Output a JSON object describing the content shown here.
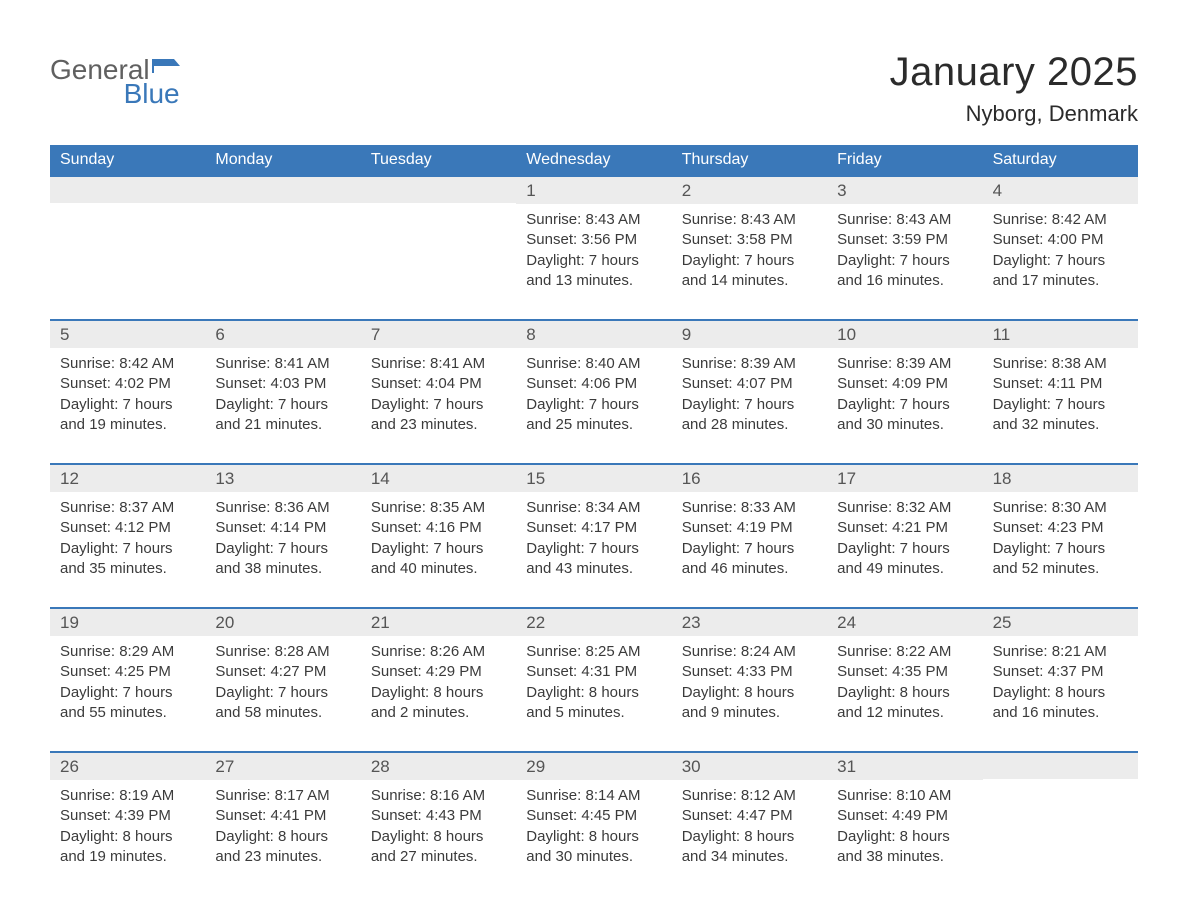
{
  "logo": {
    "text_general": "General",
    "text_blue": "Blue",
    "flag_color": "#3a78b9",
    "general_color": "#606060",
    "blue_color": "#3a78b9"
  },
  "header": {
    "month_title": "January 2025",
    "location": "Nyborg, Denmark"
  },
  "colors": {
    "header_bg": "#3a78b9",
    "header_text": "#ffffff",
    "row_divider": "#3a78b9",
    "daynum_bg": "#ececec",
    "body_text": "#3b3b3b",
    "background": "#ffffff"
  },
  "fonts": {
    "family": "Arial",
    "month_title_size": 40,
    "location_size": 22,
    "dayname_size": 16,
    "daynum_size": 17,
    "detail_size": 15
  },
  "daynames": [
    "Sunday",
    "Monday",
    "Tuesday",
    "Wednesday",
    "Thursday",
    "Friday",
    "Saturday"
  ],
  "weeks": [
    [
      {
        "day": "",
        "sunrise": "",
        "sunset": "",
        "daylight1": "",
        "daylight2": ""
      },
      {
        "day": "",
        "sunrise": "",
        "sunset": "",
        "daylight1": "",
        "daylight2": ""
      },
      {
        "day": "",
        "sunrise": "",
        "sunset": "",
        "daylight1": "",
        "daylight2": ""
      },
      {
        "day": "1",
        "sunrise": "Sunrise: 8:43 AM",
        "sunset": "Sunset: 3:56 PM",
        "daylight1": "Daylight: 7 hours",
        "daylight2": "and 13 minutes."
      },
      {
        "day": "2",
        "sunrise": "Sunrise: 8:43 AM",
        "sunset": "Sunset: 3:58 PM",
        "daylight1": "Daylight: 7 hours",
        "daylight2": "and 14 minutes."
      },
      {
        "day": "3",
        "sunrise": "Sunrise: 8:43 AM",
        "sunset": "Sunset: 3:59 PM",
        "daylight1": "Daylight: 7 hours",
        "daylight2": "and 16 minutes."
      },
      {
        "day": "4",
        "sunrise": "Sunrise: 8:42 AM",
        "sunset": "Sunset: 4:00 PM",
        "daylight1": "Daylight: 7 hours",
        "daylight2": "and 17 minutes."
      }
    ],
    [
      {
        "day": "5",
        "sunrise": "Sunrise: 8:42 AM",
        "sunset": "Sunset: 4:02 PM",
        "daylight1": "Daylight: 7 hours",
        "daylight2": "and 19 minutes."
      },
      {
        "day": "6",
        "sunrise": "Sunrise: 8:41 AM",
        "sunset": "Sunset: 4:03 PM",
        "daylight1": "Daylight: 7 hours",
        "daylight2": "and 21 minutes."
      },
      {
        "day": "7",
        "sunrise": "Sunrise: 8:41 AM",
        "sunset": "Sunset: 4:04 PM",
        "daylight1": "Daylight: 7 hours",
        "daylight2": "and 23 minutes."
      },
      {
        "day": "8",
        "sunrise": "Sunrise: 8:40 AM",
        "sunset": "Sunset: 4:06 PM",
        "daylight1": "Daylight: 7 hours",
        "daylight2": "and 25 minutes."
      },
      {
        "day": "9",
        "sunrise": "Sunrise: 8:39 AM",
        "sunset": "Sunset: 4:07 PM",
        "daylight1": "Daylight: 7 hours",
        "daylight2": "and 28 minutes."
      },
      {
        "day": "10",
        "sunrise": "Sunrise: 8:39 AM",
        "sunset": "Sunset: 4:09 PM",
        "daylight1": "Daylight: 7 hours",
        "daylight2": "and 30 minutes."
      },
      {
        "day": "11",
        "sunrise": "Sunrise: 8:38 AM",
        "sunset": "Sunset: 4:11 PM",
        "daylight1": "Daylight: 7 hours",
        "daylight2": "and 32 minutes."
      }
    ],
    [
      {
        "day": "12",
        "sunrise": "Sunrise: 8:37 AM",
        "sunset": "Sunset: 4:12 PM",
        "daylight1": "Daylight: 7 hours",
        "daylight2": "and 35 minutes."
      },
      {
        "day": "13",
        "sunrise": "Sunrise: 8:36 AM",
        "sunset": "Sunset: 4:14 PM",
        "daylight1": "Daylight: 7 hours",
        "daylight2": "and 38 minutes."
      },
      {
        "day": "14",
        "sunrise": "Sunrise: 8:35 AM",
        "sunset": "Sunset: 4:16 PM",
        "daylight1": "Daylight: 7 hours",
        "daylight2": "and 40 minutes."
      },
      {
        "day": "15",
        "sunrise": "Sunrise: 8:34 AM",
        "sunset": "Sunset: 4:17 PM",
        "daylight1": "Daylight: 7 hours",
        "daylight2": "and 43 minutes."
      },
      {
        "day": "16",
        "sunrise": "Sunrise: 8:33 AM",
        "sunset": "Sunset: 4:19 PM",
        "daylight1": "Daylight: 7 hours",
        "daylight2": "and 46 minutes."
      },
      {
        "day": "17",
        "sunrise": "Sunrise: 8:32 AM",
        "sunset": "Sunset: 4:21 PM",
        "daylight1": "Daylight: 7 hours",
        "daylight2": "and 49 minutes."
      },
      {
        "day": "18",
        "sunrise": "Sunrise: 8:30 AM",
        "sunset": "Sunset: 4:23 PM",
        "daylight1": "Daylight: 7 hours",
        "daylight2": "and 52 minutes."
      }
    ],
    [
      {
        "day": "19",
        "sunrise": "Sunrise: 8:29 AM",
        "sunset": "Sunset: 4:25 PM",
        "daylight1": "Daylight: 7 hours",
        "daylight2": "and 55 minutes."
      },
      {
        "day": "20",
        "sunrise": "Sunrise: 8:28 AM",
        "sunset": "Sunset: 4:27 PM",
        "daylight1": "Daylight: 7 hours",
        "daylight2": "and 58 minutes."
      },
      {
        "day": "21",
        "sunrise": "Sunrise: 8:26 AM",
        "sunset": "Sunset: 4:29 PM",
        "daylight1": "Daylight: 8 hours",
        "daylight2": "and 2 minutes."
      },
      {
        "day": "22",
        "sunrise": "Sunrise: 8:25 AM",
        "sunset": "Sunset: 4:31 PM",
        "daylight1": "Daylight: 8 hours",
        "daylight2": "and 5 minutes."
      },
      {
        "day": "23",
        "sunrise": "Sunrise: 8:24 AM",
        "sunset": "Sunset: 4:33 PM",
        "daylight1": "Daylight: 8 hours",
        "daylight2": "and 9 minutes."
      },
      {
        "day": "24",
        "sunrise": "Sunrise: 8:22 AM",
        "sunset": "Sunset: 4:35 PM",
        "daylight1": "Daylight: 8 hours",
        "daylight2": "and 12 minutes."
      },
      {
        "day": "25",
        "sunrise": "Sunrise: 8:21 AM",
        "sunset": "Sunset: 4:37 PM",
        "daylight1": "Daylight: 8 hours",
        "daylight2": "and 16 minutes."
      }
    ],
    [
      {
        "day": "26",
        "sunrise": "Sunrise: 8:19 AM",
        "sunset": "Sunset: 4:39 PM",
        "daylight1": "Daylight: 8 hours",
        "daylight2": "and 19 minutes."
      },
      {
        "day": "27",
        "sunrise": "Sunrise: 8:17 AM",
        "sunset": "Sunset: 4:41 PM",
        "daylight1": "Daylight: 8 hours",
        "daylight2": "and 23 minutes."
      },
      {
        "day": "28",
        "sunrise": "Sunrise: 8:16 AM",
        "sunset": "Sunset: 4:43 PM",
        "daylight1": "Daylight: 8 hours",
        "daylight2": "and 27 minutes."
      },
      {
        "day": "29",
        "sunrise": "Sunrise: 8:14 AM",
        "sunset": "Sunset: 4:45 PM",
        "daylight1": "Daylight: 8 hours",
        "daylight2": "and 30 minutes."
      },
      {
        "day": "30",
        "sunrise": "Sunrise: 8:12 AM",
        "sunset": "Sunset: 4:47 PM",
        "daylight1": "Daylight: 8 hours",
        "daylight2": "and 34 minutes."
      },
      {
        "day": "31",
        "sunrise": "Sunrise: 8:10 AM",
        "sunset": "Sunset: 4:49 PM",
        "daylight1": "Daylight: 8 hours",
        "daylight2": "and 38 minutes."
      },
      {
        "day": "",
        "sunrise": "",
        "sunset": "",
        "daylight1": "",
        "daylight2": ""
      }
    ]
  ]
}
